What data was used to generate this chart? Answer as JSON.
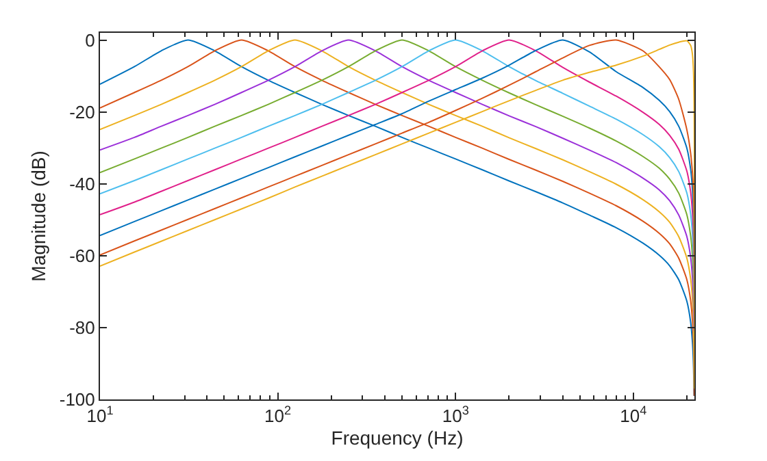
{
  "chart_data": {
    "type": "line",
    "xlabel": "Frequency (Hz)",
    "ylabel": "Magnitude (dB)",
    "log": "x",
    "marker": "none",
    "line_style": "solid",
    "xlim": [
      10,
      22050
    ],
    "ylim": [
      -100,
      2
    ],
    "xticks": [
      {
        "value": 10,
        "label": "10$^{1}$"
      },
      {
        "value": 20,
        "label": null
      },
      {
        "value": 30,
        "label": null
      },
      {
        "value": 40,
        "label": null
      },
      {
        "value": 50,
        "label": null
      },
      {
        "value": 60,
        "label": null
      },
      {
        "value": 70,
        "label": null
      },
      {
        "value": 80,
        "label": null
      },
      {
        "value": 90,
        "label": null
      },
      {
        "value": 100,
        "label": "10$^{2}$"
      },
      {
        "value": 200,
        "label": null
      },
      {
        "value": 300,
        "label": null
      },
      {
        "value": 400,
        "label": null
      },
      {
        "value": 500,
        "label": null
      },
      {
        "value": 600,
        "label": null
      },
      {
        "value": 700,
        "label": null
      },
      {
        "value": 800,
        "label": null
      },
      {
        "value": 900,
        "label": null
      },
      {
        "value": 1000,
        "label": "10$^{3}$"
      },
      {
        "value": 2000,
        "label": null
      },
      {
        "value": 3000,
        "label": null
      },
      {
        "value": 4000,
        "label": null
      },
      {
        "value": 5000,
        "label": null
      },
      {
        "value": 6000,
        "label": null
      },
      {
        "value": 7000,
        "label": null
      },
      {
        "value": 8000,
        "label": null
      },
      {
        "value": 9000,
        "label": null
      },
      {
        "value": 10000,
        "label": "10$^{4}$"
      },
      {
        "value": 20000,
        "label": null
      }
    ],
    "yticks": [
      -100,
      -80,
      -60,
      -40,
      -20,
      0
    ],
    "series": [
      {
        "color": "#0072bd",
        "x": [
          10,
          15.625,
          22.1,
          31.25,
          44.2,
          62.5,
          88.4,
          125,
          177,
          250,
          354,
          500,
          707,
          1000,
          1414,
          2000,
          2828,
          4000,
          5657,
          8000,
          11314,
          14000,
          16000,
          18000,
          20000,
          21000,
          21500,
          21800,
          21950
        ],
        "values": [
          -12.3,
          -7.4,
          -3.0,
          0,
          -3.0,
          -7.4,
          -11.2,
          -14.6,
          -17.9,
          -21.0,
          -24.0,
          -27.1,
          -30.1,
          -33.1,
          -36.1,
          -39.2,
          -42.2,
          -45.3,
          -48.7,
          -52.2,
          -56.5,
          -59.9,
          -62.8,
          -66.7,
          -72.7,
          -78.5,
          -84.2,
          -91.0,
          -99.0
        ]
      },
      {
        "color": "#d95319",
        "x": [
          10,
          15.625,
          22.1,
          31.25,
          44.2,
          62.5,
          88.4,
          125,
          177,
          250,
          354,
          500,
          707,
          1000,
          1414,
          2000,
          2828,
          4000,
          5657,
          8000,
          11314,
          14000,
          16000,
          18000,
          20000,
          21000,
          21500,
          21800,
          21950,
          22000
        ],
        "values": [
          -18.9,
          -14.6,
          -11.2,
          -7.4,
          -3.0,
          0,
          -3.0,
          -7.4,
          -11.2,
          -14.6,
          -17.9,
          -21.0,
          -24.0,
          -27.1,
          -30.1,
          -33.2,
          -36.2,
          -39.3,
          -42.6,
          -46.1,
          -50.4,
          -53.8,
          -56.7,
          -60.7,
          -66.7,
          -72.5,
          -78.2,
          -85.0,
          -92.9,
          -99.0
        ]
      },
      {
        "color": "#edb120",
        "x": [
          10,
          15.625,
          22.1,
          31.25,
          44.2,
          62.5,
          88.4,
          125,
          177,
          250,
          354,
          500,
          707,
          1000,
          1414,
          2000,
          2828,
          4000,
          5657,
          8000,
          11314,
          14000,
          16000,
          18000,
          20000,
          21000,
          21500,
          21800,
          21950,
          22000,
          22018
        ],
        "values": [
          -24.9,
          -21.0,
          -17.9,
          -14.6,
          -11.2,
          -7.4,
          -3.0,
          0,
          -3.0,
          -7.4,
          -11.2,
          -14.6,
          -17.9,
          -21.0,
          -24.0,
          -27.2,
          -30.2,
          -33.3,
          -36.6,
          -40.1,
          -44.4,
          -47.8,
          -50.7,
          -54.7,
          -60.7,
          -66.5,
          -72.2,
          -79.0,
          -86.9,
          -93.0,
          -96.8
        ]
      },
      {
        "color": "#9b30d9",
        "x": [
          10,
          15.625,
          22.1,
          31.25,
          44.2,
          62.5,
          88.4,
          125,
          177,
          250,
          354,
          500,
          707,
          1000,
          1414,
          2000,
          2828,
          4000,
          5657,
          8000,
          11314,
          14000,
          16000,
          18000,
          20000,
          21000,
          21500,
          21800,
          21950
        ],
        "values": [
          -30.6,
          -27.1,
          -24.0,
          -21.0,
          -17.9,
          -14.6,
          -11.2,
          -7.4,
          -3.0,
          0,
          -3.0,
          -7.4,
          -11.2,
          -14.6,
          -17.9,
          -21.1,
          -24.1,
          -27.3,
          -30.6,
          -34.1,
          -38.4,
          -41.7,
          -44.7,
          -48.7,
          -54.7,
          -60.5,
          -66.2,
          -73.0,
          -80.9
        ]
      },
      {
        "color": "#77ac30",
        "x": [
          10,
          15.625,
          22.1,
          31.25,
          44.2,
          62.5,
          88.4,
          125,
          177,
          250,
          354,
          500,
          707,
          1000,
          1414,
          2000,
          2828,
          4000,
          5657,
          8000,
          11314,
          14000,
          16000,
          18000,
          20000,
          21000,
          21500,
          21800,
          21950
        ],
        "values": [
          -36.9,
          -33.1,
          -30.1,
          -27.1,
          -24.0,
          -21.0,
          -17.9,
          -14.6,
          -11.2,
          -7.4,
          -3.0,
          0,
          -3.0,
          -7.4,
          -11.2,
          -14.7,
          -18.0,
          -21.2,
          -24.5,
          -28.1,
          -32.4,
          -35.7,
          -38.7,
          -42.6,
          -48.6,
          -54.5,
          -60.2,
          -66.9,
          -74.9
        ]
      },
      {
        "color": "#4dbeee",
        "x": [
          10,
          15.625,
          22.1,
          31.25,
          44.2,
          62.5,
          88.4,
          125,
          177,
          250,
          354,
          500,
          707,
          1000,
          1414,
          2000,
          2828,
          4000,
          5657,
          8000,
          11314,
          14000,
          16000,
          18000,
          20000,
          21000,
          21500,
          21800,
          21950,
          22000,
          22030,
          22042,
          22046
        ],
        "values": [
          -42.8,
          -39.1,
          -36.1,
          -33.1,
          -30.1,
          -27.1,
          -24.0,
          -21.0,
          -17.9,
          -14.6,
          -11.2,
          -7.4,
          -3.0,
          0,
          -3.0,
          -7.4,
          -11.3,
          -14.8,
          -18.4,
          -22.0,
          -26.3,
          -29.7,
          -32.7,
          -36.6,
          -42.6,
          -48.4,
          -54.1,
          -60.9,
          -68.8,
          -74.9,
          -82.8,
          -90.8,
          -96.8
        ]
      },
      {
        "color": "#e0208a",
        "x": [
          10,
          15.625,
          22.1,
          31.25,
          44.2,
          62.5,
          88.4,
          125,
          177,
          250,
          354,
          500,
          707,
          1000,
          1414,
          2000,
          2828,
          4000,
          5657,
          8000,
          11314,
          14000,
          16000,
          18000,
          20000,
          21000,
          21500,
          21800,
          21950,
          22000,
          22030
        ],
        "values": [
          -48.6,
          -45.1,
          -42.1,
          -39.1,
          -36.1,
          -33.1,
          -30.1,
          -27.1,
          -24.0,
          -21.0,
          -17.9,
          -14.6,
          -11.2,
          -7.4,
          -3.0,
          0,
          -3.0,
          -7.6,
          -11.7,
          -15.6,
          -20.1,
          -23.5,
          -26.5,
          -30.4,
          -36.5,
          -42.3,
          -48.0,
          -54.8,
          -62.7,
          -68.8,
          -76.7
        ]
      },
      {
        "color": "#0072bd",
        "x": [
          10,
          15.625,
          22.1,
          31.25,
          44.2,
          62.5,
          88.4,
          125,
          177,
          250,
          354,
          500,
          707,
          1000,
          1414,
          2000,
          2828,
          4000,
          5657,
          8000,
          11314,
          14000,
          16000,
          18000,
          20000,
          21000,
          21500,
          21800,
          21950,
          22000,
          22030,
          22042,
          22046,
          22048,
          22049
        ],
        "values": [
          -54.4,
          -50.5,
          -47.5,
          -44.5,
          -41.5,
          -38.5,
          -35.5,
          -32.5,
          -29.5,
          -26.5,
          -23.5,
          -20.5,
          -17.0,
          -13.8,
          -10.6,
          -7.0,
          -2.9,
          0,
          -3.3,
          -8.8,
          -13.2,
          -16.8,
          -19.9,
          -24.0,
          -30.1,
          -36.0,
          -41.7,
          -48.4,
          -56.4,
          -62.5,
          -70.4,
          -78.4,
          -84.4,
          -90.4,
          -96.4
        ]
      },
      {
        "color": "#d95319",
        "x": [
          10,
          15.625,
          22.1,
          31.25,
          44.2,
          62.5,
          88.4,
          125,
          177,
          250,
          354,
          500,
          707,
          1000,
          1414,
          2000,
          2828,
          4000,
          5657,
          8000,
          11314,
          14000,
          16000,
          18000,
          20000,
          21000,
          21500,
          21800,
          21950,
          22000,
          22030,
          22042,
          22046,
          22048,
          22049,
          22049.5
        ],
        "values": [
          -59.8,
          -55.9,
          -52.9,
          -49.9,
          -46.9,
          -43.9,
          -40.9,
          -37.9,
          -34.9,
          -31.9,
          -28.9,
          -25.9,
          -22.9,
          -19.6,
          -16.2,
          -12.6,
          -8.8,
          -5.0,
          -1.5,
          0,
          -3.0,
          -7.5,
          -11.0,
          -16.5,
          -25.0,
          -31.5,
          -37.0,
          -42.3,
          -50.3,
          -56.4,
          -64.3,
          -72.3,
          -78.3,
          -84.3,
          -90.3,
          -96.3
        ]
      },
      {
        "color": "#edb120",
        "x": [
          10,
          15.625,
          22.1,
          31.25,
          44.2,
          62.5,
          88.4,
          125,
          177,
          250,
          354,
          500,
          707,
          1000,
          1414,
          2000,
          2828,
          4000,
          5657,
          8000,
          11314,
          14000,
          16000,
          18000,
          20000,
          21000,
          21500,
          21800,
          21950,
          22000,
          22030,
          22042,
          22046,
          22048,
          22049,
          22049.5,
          22049.75,
          22049.9,
          22049.97,
          22049.99
        ],
        "values": [
          -62.9,
          -59.0,
          -56.0,
          -53.0,
          -50.0,
          -47.0,
          -44.0,
          -40.9,
          -37.9,
          -34.9,
          -31.9,
          -28.9,
          -25.9,
          -22.9,
          -19.9,
          -16.9,
          -14.0,
          -11.2,
          -9.0,
          -7.0,
          -4.5,
          -2.6,
          -1.4,
          -0.6,
          -0.2,
          -1.5,
          -4.0,
          -9.0,
          -17.0,
          -23.5,
          -32.0,
          -40.0,
          -46.0,
          -52.0,
          -58.0,
          -64.0,
          -70.0,
          -78.0,
          -88.0,
          -97.0
        ]
      }
    ]
  }
}
